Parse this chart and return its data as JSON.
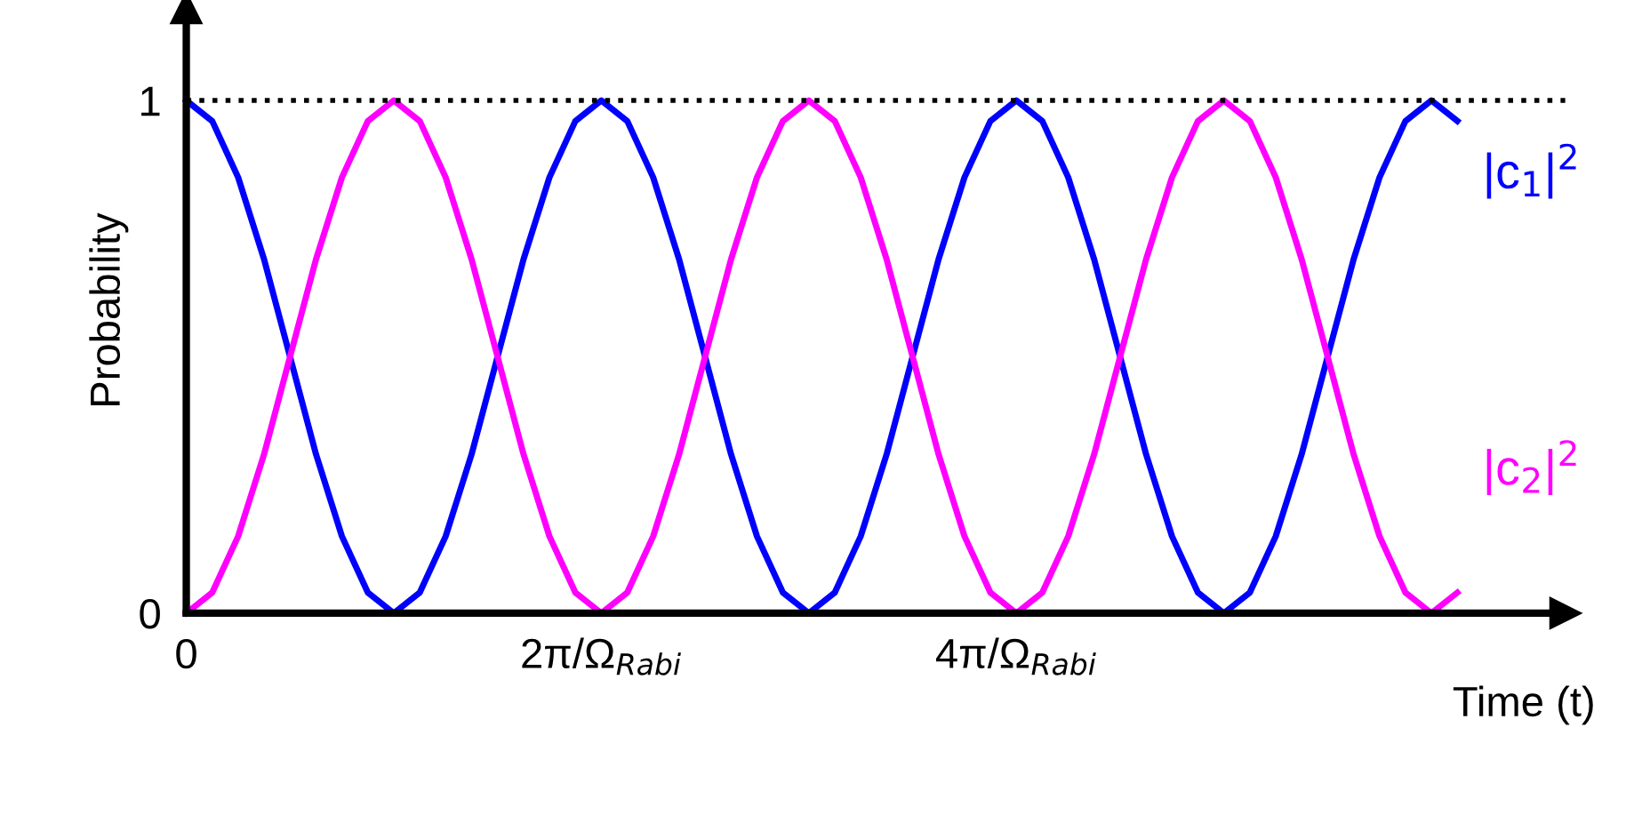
{
  "chart_data": {
    "type": "line",
    "xlabel": "Time (t)",
    "ylabel": "Probability",
    "categories": [
      "0",
      null,
      null,
      null,
      null,
      null,
      null,
      null,
      null,
      null,
      null,
      null,
      null,
      null,
      null,
      null,
      "2π/Ω$_{Rabi}$",
      null,
      null,
      null,
      null,
      null,
      null,
      null,
      null,
      null,
      null,
      null,
      null,
      null,
      null,
      null,
      "4π/Ω$_{Rabi}$",
      null,
      null,
      null,
      null,
      null,
      null,
      null,
      null,
      null,
      null,
      null,
      null,
      null,
      null,
      null,
      null,
      null
    ],
    "series": [
      {
        "name": "|c$_{1}$|$^{2}$",
        "color": "#0000ff",
        "values": [
          1,
          0.96,
          0.85,
          0.69,
          0.5,
          0.31,
          0.15,
          0.04,
          0,
          0.04,
          0.15,
          0.31,
          0.5,
          0.69,
          0.85,
          0.96,
          1,
          0.96,
          0.85,
          0.69,
          0.5,
          0.31,
          0.15,
          0.04,
          0,
          0.04,
          0.15,
          0.31,
          0.5,
          0.69,
          0.85,
          0.96,
          1,
          0.96,
          0.85,
          0.69,
          0.5,
          0.31,
          0.15,
          0.04,
          0,
          0.04,
          0.15,
          0.31,
          0.5,
          0.69,
          0.85,
          0.96,
          1,
          0.96
        ]
      },
      {
        "name": "|c$_{2}$|$^{2}$",
        "color": "#ff00ff",
        "values": [
          0,
          0.04,
          0.15,
          0.31,
          0.5,
          0.69,
          0.85,
          0.96,
          1,
          0.96,
          0.85,
          0.69,
          0.5,
          0.31,
          0.15,
          0.04,
          0,
          0.04,
          0.15,
          0.31,
          0.5,
          0.69,
          0.85,
          0.96,
          1,
          0.96,
          0.85,
          0.69,
          0.5,
          0.31,
          0.15,
          0.04,
          0,
          0.04,
          0.15,
          0.31,
          0.5,
          0.69,
          0.85,
          0.96,
          1,
          0.96,
          0.85,
          0.69,
          0.5,
          0.31,
          0.15,
          0.04,
          0,
          0.04
        ]
      }
    ],
    "ylim": [
      0,
      1.18
    ],
    "yticks": [
      0,
      1
    ],
    "ref_lines": [
      {
        "axis": "y",
        "value": 1,
        "color": "#000000",
        "line_style": "dotted"
      }
    ],
    "grid": false,
    "legend": false,
    "marker": "none",
    "line_style": "solid"
  }
}
